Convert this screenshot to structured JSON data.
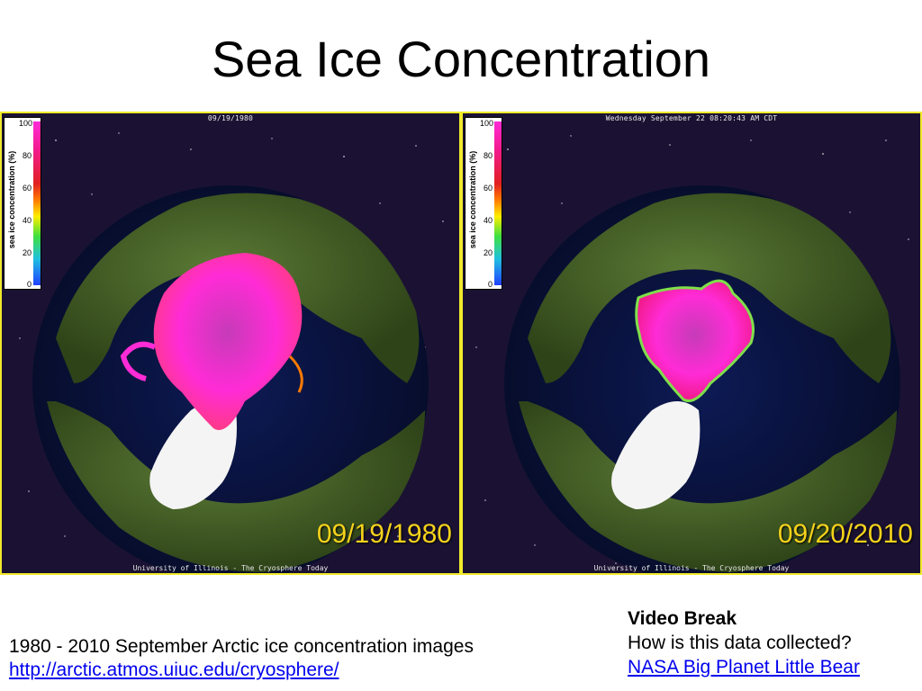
{
  "title": "Sea Ice Concentration",
  "legend": {
    "title": "sea ice concentration (%)",
    "ticks": [
      "100",
      "80",
      "60",
      "40",
      "20",
      "0"
    ]
  },
  "panels": [
    {
      "top_caption": "09/19/1980",
      "date_label": "09/19/1980",
      "credit": "University of Illinois - The Cryosphere Today"
    },
    {
      "top_caption": "Wednesday September 22 08:20:43 AM CDT",
      "date_label": "09/20/2010",
      "credit": "University of Illinois - The Cryosphere Today"
    }
  ],
  "caption_left": {
    "text": "1980 - 2010 September Arctic ice concentration images",
    "link": "http://arctic.atmos.uiuc.edu/cryosphere/"
  },
  "caption_right": {
    "heading": "Video Break",
    "question": "How is this data collected?",
    "link": "NASA Big Planet Little Bear"
  },
  "colors": {
    "panel_border": "#f0ea2a",
    "date_label": "#f5d21c",
    "ice_high": "#ff2bd6",
    "ocean": "#0c1440",
    "land": "#4a6a2c",
    "greenland": "#f4f4f4",
    "link": "#0000ee"
  }
}
